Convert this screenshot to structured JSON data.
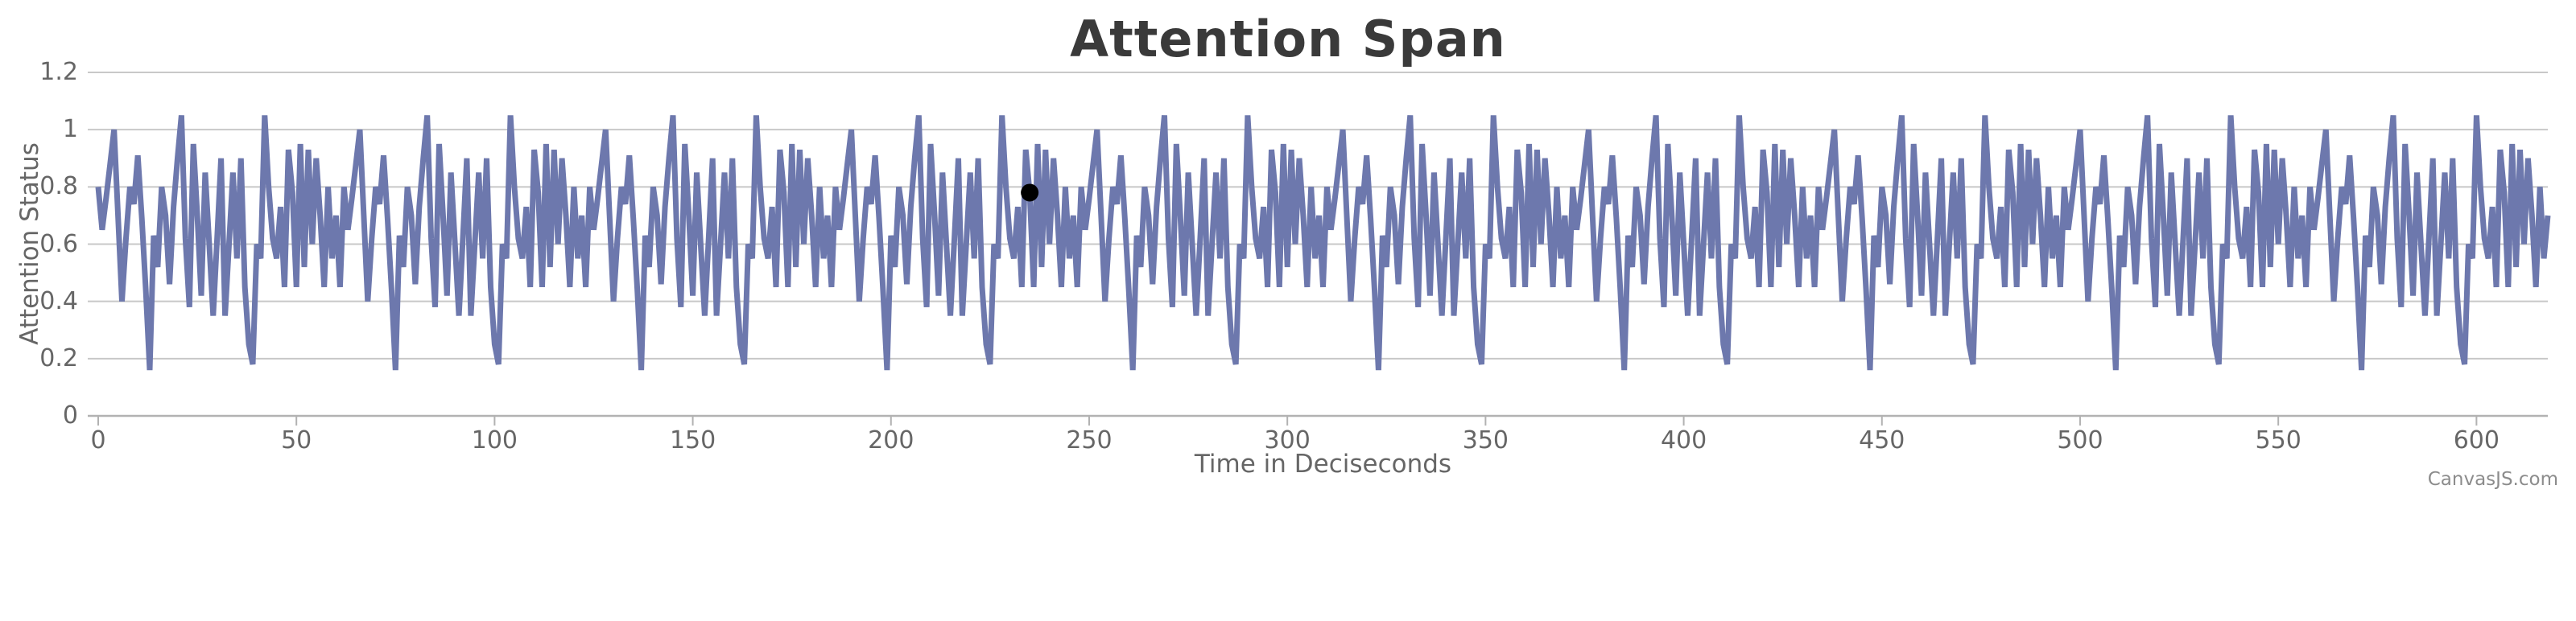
{
  "chart_data": {
    "type": "line",
    "title": "Attention Span",
    "xlabel": "Time in Deciseconds",
    "ylabel": "Attention Status",
    "credit": "CanvasJS.com",
    "xlim": [
      0,
      618
    ],
    "ylim": [
      0,
      1.2
    ],
    "x_step": 1,
    "x_ticks": [
      0,
      50,
      100,
      150,
      200,
      250,
      300,
      350,
      400,
      450,
      500,
      550,
      600
    ],
    "y_ticks": [
      0,
      0.2,
      0.4,
      0.6,
      0.8,
      1,
      1.2
    ],
    "y_tick_labels": [
      "0",
      "0.2",
      "0.4",
      "0.6",
      "0.8",
      "1",
      "1.2"
    ],
    "grid": true,
    "legend": "none",
    "line_color": "#6D78AD",
    "grid_color": "#c8c8c8",
    "axis_line_color": "#b2b2b2",
    "label_color": "#666666",
    "title_color": "#3a3a3a",
    "series_name": "Attention Status",
    "pattern_period": 62,
    "pattern_values": [
      0.8,
      0.65,
      0.76,
      0.88,
      1.0,
      0.7,
      0.4,
      0.62,
      0.8,
      0.74,
      0.91,
      0.69,
      0.44,
      0.16,
      0.63,
      0.52,
      0.8,
      0.7,
      0.46,
      0.73,
      0.9,
      1.05,
      0.62,
      0.38,
      0.95,
      0.7,
      0.42,
      0.85,
      0.6,
      0.35,
      0.62,
      0.9,
      0.35,
      0.6,
      0.85,
      0.55,
      0.9,
      0.45,
      0.25,
      0.18,
      0.6,
      0.55,
      1.05,
      0.8,
      0.62,
      0.55,
      0.73,
      0.45,
      0.93,
      0.78,
      0.45,
      0.95,
      0.52,
      0.93,
      0.6,
      0.9,
      0.7,
      0.45,
      0.8,
      0.55,
      0.7,
      0.45
    ],
    "pattern_note": "Dense 1-decisecond sampled attention signal, values ~0.15-1.05; full series is this 62-point pattern tiled across x=0..618, matching the quasi-periodic waveform (tall ~1.05 peaks roughly every 29-33 units, dips to ~0.15-0.2).",
    "marker": {
      "x": 235,
      "y": 0.78,
      "color": "#000000",
      "radius": 11
    }
  }
}
